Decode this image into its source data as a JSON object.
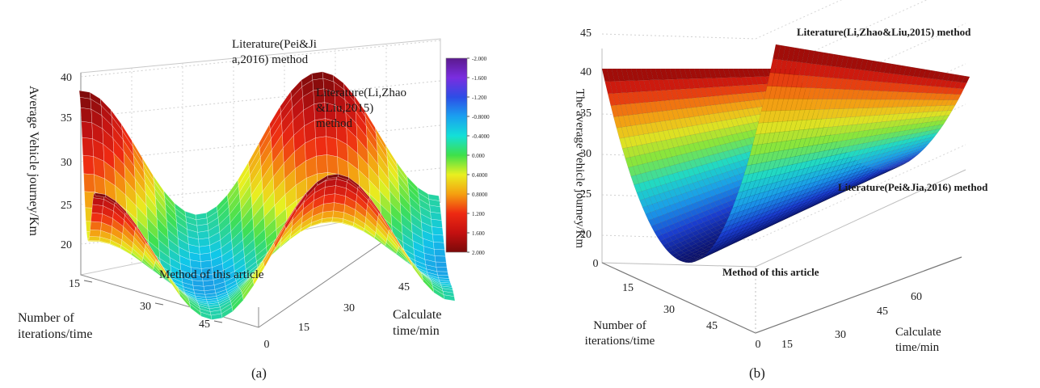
{
  "chart_data": [
    {
      "panel": "a",
      "type": "surface3d",
      "caption": "(a)",
      "xlabel": "Number of iterations/time",
      "ylabel": "Calculate time/min",
      "zlabel": "Average Vehicle journey/Km",
      "x_ticks": [
        "15",
        "30",
        "45"
      ],
      "y_ticks": [
        "0",
        "15",
        "30",
        "45"
      ],
      "z_ticks": [
        "20",
        "25",
        "30",
        "35",
        "40"
      ],
      "colorbar": {
        "ticks": [
          "-2.000",
          "-1.600",
          "-1.200",
          "-0.8000",
          "-0.4000",
          "0.000",
          "0.4000",
          "0.8000",
          "1.200",
          "1.600",
          "2.000"
        ],
        "colors": [
          "#5b1a8e",
          "#7a2de0",
          "#2d4de6",
          "#1aa0f0",
          "#13e0d8",
          "#3ee04a",
          "#e8f020",
          "#f5a010",
          "#ee2a12",
          "#c41010",
          "#7a0a0a"
        ]
      },
      "annotations": [
        {
          "text": "Literature(Pei&Ji a,2016) method"
        },
        {
          "text": "Literature(Li,Zhao &Liu,2015) method"
        },
        {
          "text": "Method of this article"
        }
      ]
    },
    {
      "panel": "b",
      "type": "surface3d",
      "caption": "(b)",
      "xlabel": "Number of iterations/time",
      "ylabel": "Calculate time/min",
      "zlabel": "The average  vehicle journey/Km",
      "x_ticks": [
        "0",
        "15",
        "30",
        "45"
      ],
      "y_ticks": [
        "0",
        "15",
        "30",
        "45",
        "60"
      ],
      "z_ticks": [
        "20",
        "25",
        "30",
        "35",
        "40",
        "45"
      ],
      "annotations": [
        {
          "text": "Literature(Li,Zhao&Liu,2015) method"
        },
        {
          "text": "Literature(Pei&Jia,2016) method"
        },
        {
          "text": "Method of this article"
        }
      ]
    }
  ]
}
